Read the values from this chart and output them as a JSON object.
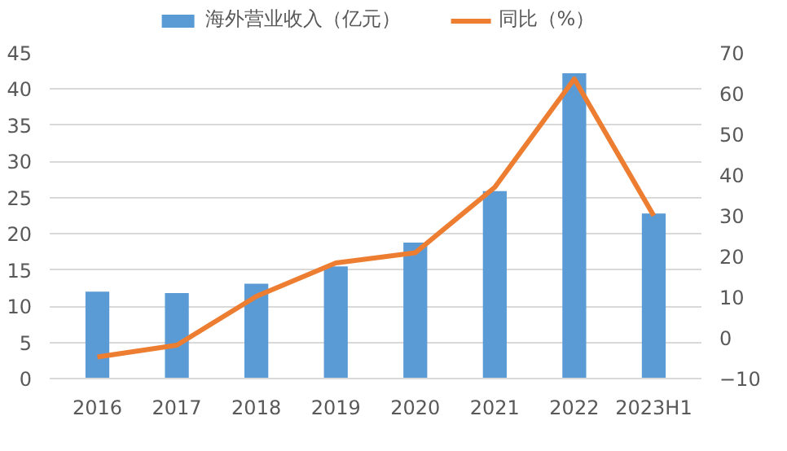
{
  "chart_data": {
    "type": "bar",
    "categories": [
      "2016",
      "2017",
      "2018",
      "2019",
      "2020",
      "2021",
      "2022",
      "2023H1"
    ],
    "series": [
      {
        "name": "海外营业收入（亿元）",
        "color": "#5b9bd5",
        "values": [
          12,
          11.8,
          13.1,
          15.5,
          18.8,
          25.9,
          42.2,
          22.8
        ]
      },
      {
        "name": "同比（%）",
        "type": "line",
        "axis": "y2",
        "color": "#ed7d31",
        "values": [
          -4.7,
          -1.8,
          10.2,
          18.4,
          20.9,
          37,
          63.6,
          30
        ]
      }
    ],
    "ylim": [
      0,
      45
    ],
    "yticks": [
      0,
      5,
      10,
      15,
      20,
      25,
      30,
      35,
      40,
      45
    ],
    "y2lim": [
      -10,
      70
    ],
    "y2ticks": [
      -10,
      0,
      10,
      20,
      30,
      40,
      50,
      60,
      70
    ],
    "grid": "y",
    "legend": "top",
    "marker": "none",
    "line_style": "solid"
  }
}
